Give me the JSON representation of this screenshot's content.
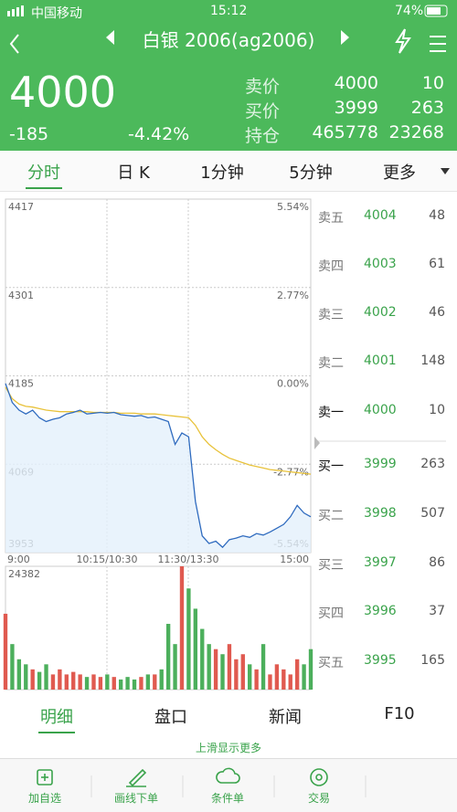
{
  "status": {
    "carrier": "中国移动",
    "time": "15:12",
    "battery": "74%"
  },
  "header": {
    "title": "白银 2006(ag2006)"
  },
  "quote": {
    "price": "4000",
    "change": "-185",
    "pct": "-4.42%",
    "rows": [
      [
        "卖价",
        "4000",
        "10"
      ],
      [
        "买价",
        "3999",
        "263"
      ],
      [
        "持仓",
        "465778",
        "23268"
      ]
    ]
  },
  "tabs": [
    "分时",
    "日 K",
    "1分钟",
    "5分钟",
    "更多"
  ],
  "chart": {
    "type": "line",
    "ylim": [
      3953,
      4417
    ],
    "yticks": [
      4417,
      4301,
      4185,
      4069,
      3953
    ],
    "y2lim": [
      -5.54,
      5.54
    ],
    "y2ticks": [
      {
        "value": 5.54,
        "label": "5.54%"
      },
      {
        "value": 2.77,
        "label": "2.77%"
      },
      {
        "value": 0,
        "label": "0.00%"
      },
      {
        "value": -2.77,
        "label": "-2.77%"
      },
      {
        "value": -5.54,
        "label": "-5.54%"
      }
    ],
    "xlabels": [
      "9:00",
      "10:15/10:30",
      "11:30/13:30",
      "15:00"
    ],
    "price": {
      "color": "#2f6bbf",
      "values": [
        4175,
        4150,
        4140,
        4135,
        4140,
        4130,
        4125,
        4128,
        4130,
        4135,
        4137,
        4140,
        4135,
        4136,
        4137,
        4136,
        4137,
        4134,
        4133,
        4132,
        4133,
        4130,
        4131,
        4128,
        4125,
        4095,
        4110,
        4105,
        4020,
        3975,
        3965,
        3968,
        3960,
        3970,
        3972,
        3975,
        3973,
        3978,
        3976,
        3980,
        3985,
        3990,
        4000,
        4015,
        4005,
        4000
      ]
    },
    "average": {
      "color": "#e8c23a",
      "values": [
        4170,
        4155,
        4148,
        4145,
        4144,
        4142,
        4140,
        4139,
        4138,
        4138,
        4138,
        4138,
        4138,
        4137,
        4137,
        4137,
        4137,
        4136,
        4136,
        4136,
        4135,
        4135,
        4135,
        4134,
        4133,
        4132,
        4131,
        4130,
        4120,
        4105,
        4095,
        4088,
        4082,
        4077,
        4074,
        4071,
        4068,
        4066,
        4064,
        4062,
        4061,
        4060,
        4059,
        4058,
        4057,
        4056
      ]
    },
    "volume": {
      "colors": [
        "#e05a50",
        "#4caf5c"
      ],
      "vlim": [
        0,
        24382
      ],
      "vticks": [
        24382
      ],
      "values": [
        15000,
        9000,
        6000,
        5000,
        4000,
        3500,
        5000,
        3000,
        4000,
        3000,
        3500,
        3000,
        2500,
        3000,
        2500,
        3000,
        2500,
        2000,
        2500,
        2000,
        2500,
        3000,
        3000,
        4000,
        13000,
        9000,
        24382,
        20000,
        16000,
        12000,
        9000,
        8000,
        7000,
        9000,
        6000,
        7000,
        5000,
        4000,
        9000,
        3000,
        5000,
        4000,
        3000,
        6000,
        5000,
        8000
      ]
    }
  },
  "book": [
    [
      "卖五",
      "4004",
      "48"
    ],
    [
      "卖四",
      "4003",
      "61"
    ],
    [
      "卖三",
      "4002",
      "46"
    ],
    [
      "卖二",
      "4001",
      "148"
    ],
    [
      "卖一",
      "4000",
      "10"
    ],
    [
      "买一",
      "3999",
      "263"
    ],
    [
      "买二",
      "3998",
      "507"
    ],
    [
      "买三",
      "3997",
      "86"
    ],
    [
      "买四",
      "3996",
      "37"
    ],
    [
      "买五",
      "3995",
      "165"
    ]
  ],
  "bottom_tabs": [
    "明细",
    "盘口",
    "新闻",
    "F10"
  ],
  "hint": "上滑显示更多",
  "toolbar": [
    "加自选",
    "画线下单",
    "条件单",
    "交易"
  ]
}
